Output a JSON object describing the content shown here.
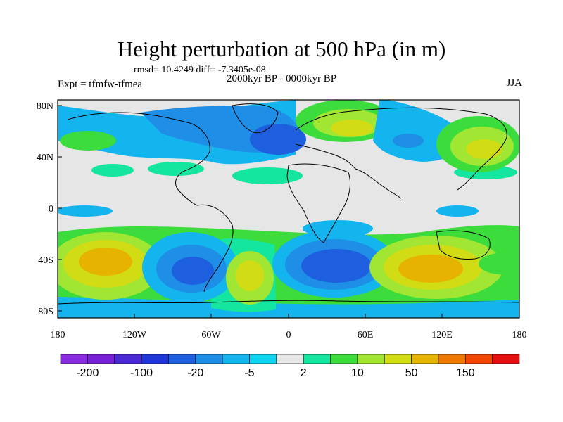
{
  "header": {
    "title": "Height perturbation at 500 hPa (in m)",
    "stats": "rmsd= 10.4249 diff= -7.3405e-08",
    "experiment": "Expt = tfmfw-tfmea",
    "period": "2000kyr BP - 0000kyr BP",
    "season": "JJA"
  },
  "axes": {
    "lat_ticks": [
      "80N",
      "40N",
      "0",
      "40S",
      "80S"
    ],
    "lon_ticks": [
      "180",
      "120W",
      "60W",
      "0",
      "60E",
      "120E",
      "180"
    ]
  },
  "colorbar": {
    "colors": [
      "#8a2be2",
      "#7a1fd8",
      "#4b2ad6",
      "#1e36d8",
      "#1e5fe0",
      "#1e8ee6",
      "#14b4ee",
      "#0fd4f0",
      "#e6e6e6",
      "#14e6a0",
      "#3cdc3c",
      "#a0e632",
      "#d2dc14",
      "#e6b400",
      "#ee7800",
      "#f04600",
      "#e60f0f"
    ],
    "labels": [
      "-200",
      "-100",
      "-20",
      "-5",
      "2",
      "10",
      "50",
      "150"
    ]
  },
  "palette": {
    "background": "#e6e6e6",
    "coast": "#000000"
  }
}
